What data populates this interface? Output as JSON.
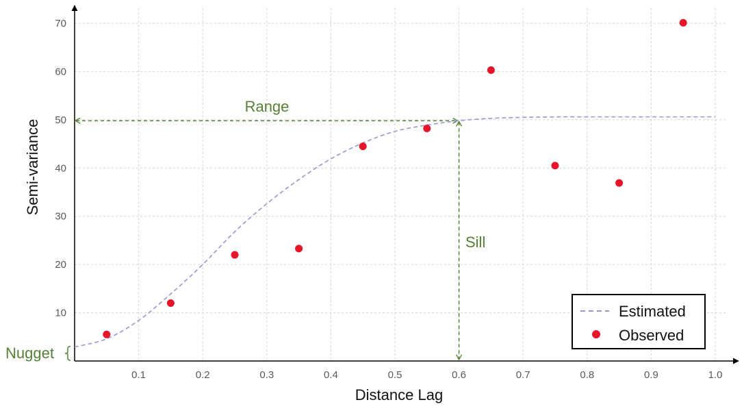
{
  "chart_data": {
    "type": "scatter",
    "xlabel": "Distance Lag",
    "ylabel": "Semi-variance",
    "xlim": [
      0,
      1.0
    ],
    "ylim": [
      0,
      70
    ],
    "x_ticks": [
      0.1,
      0.2,
      0.3,
      0.4,
      0.5,
      0.6,
      0.7,
      0.8,
      0.9,
      1.0
    ],
    "y_ticks": [
      10,
      20,
      30,
      40,
      50,
      60,
      70
    ],
    "x_tick_labels": [
      "0.1",
      "0.2",
      "0.3",
      "0.4",
      "0.5",
      "0.6",
      "0.7",
      "0.8",
      "0.9",
      "1.0"
    ],
    "y_tick_labels": [
      "10",
      "20",
      "30",
      "40",
      "50",
      "60",
      "70"
    ],
    "grid": true,
    "legend_position": "bottom-right",
    "series": [
      {
        "name": "Estimated",
        "kind": "dashed-line",
        "color": "#9a94d8",
        "x": [
          0,
          0.05,
          0.1,
          0.15,
          0.2,
          0.25,
          0.3,
          0.35,
          0.4,
          0.45,
          0.5,
          0.55,
          0.6,
          0.65,
          0.7,
          0.75,
          0.8,
          0.85,
          0.9,
          0.95,
          1.0
        ],
        "y": [
          2.9,
          4.6,
          8.4,
          13.9,
          20.0,
          26.8,
          32.6,
          37.6,
          41.9,
          45.2,
          47.6,
          48.9,
          49.8,
          50.3,
          50.5,
          50.6,
          50.6,
          50.6,
          50.6,
          50.6,
          50.6
        ]
      },
      {
        "name": "Observed",
        "kind": "points",
        "color": "#e8142a",
        "x": [
          0.05,
          0.15,
          0.25,
          0.35,
          0.45,
          0.55,
          0.65,
          0.75,
          0.85,
          0.95
        ],
        "y": [
          5.5,
          12.0,
          22.0,
          23.3,
          44.5,
          48.2,
          60.3,
          40.5,
          36.9,
          70.1
        ]
      }
    ],
    "annotations": {
      "range": {
        "label": "Range",
        "value": 0.6,
        "at_y": 49.8
      },
      "sill": {
        "label": "Sill",
        "value": 49.8,
        "at_x": 0.6
      },
      "nugget": {
        "label": "Nugget",
        "value": 2.9
      }
    },
    "annotation_color": "#548235"
  }
}
